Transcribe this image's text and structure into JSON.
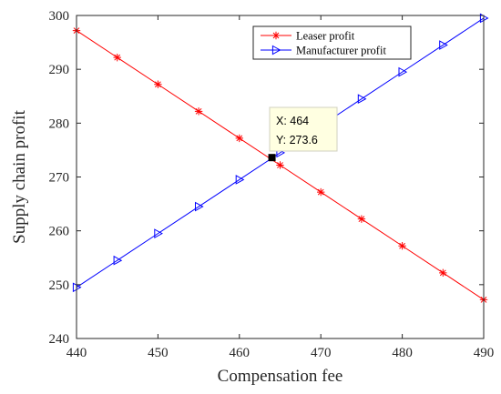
{
  "chart_data": {
    "type": "line",
    "xlabel": "Compensation fee",
    "ylabel": "Supply chain profit",
    "xlim": [
      440,
      490
    ],
    "ylim": [
      240,
      300
    ],
    "xticks": [
      440,
      450,
      460,
      470,
      480,
      490
    ],
    "yticks": [
      240,
      250,
      260,
      270,
      280,
      290,
      300
    ],
    "grid": false,
    "legend_position": "top-right",
    "series": [
      {
        "name": "Leaser profit",
        "color": "#ff0000",
        "marker": "asterisk",
        "x": [
          440,
          445,
          450,
          455,
          460,
          465,
          470,
          475,
          480,
          485,
          490
        ],
        "y": [
          297.2,
          292.2,
          287.2,
          282.2,
          277.2,
          272.2,
          267.2,
          262.2,
          257.2,
          252.2,
          247.2
        ]
      },
      {
        "name": "Manufacturer profit",
        "color": "#0000ff",
        "marker": "triangle-right",
        "x": [
          440,
          445,
          450,
          455,
          460,
          465,
          470,
          475,
          480,
          485,
          490
        ],
        "y": [
          249.5,
          254.5,
          259.5,
          264.5,
          269.5,
          274.5,
          279.5,
          284.5,
          289.5,
          294.5,
          299.5
        ]
      }
    ],
    "datatip": {
      "x": 464,
      "y": 273.6,
      "x_text": "X: 464",
      "y_text": "Y: 273.6"
    }
  }
}
